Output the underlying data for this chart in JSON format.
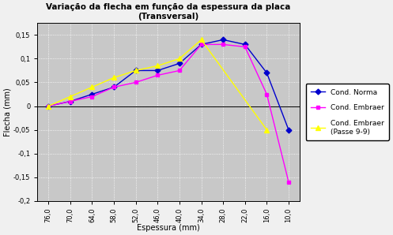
{
  "title_line1": "Variação da flecha em função da espessura da placa",
  "title_line2": "(Transversal)",
  "xlabel": "Espessura (mm)",
  "ylabel": "Flecha (mm)",
  "x_values": [
    76,
    70,
    64,
    58,
    52,
    46,
    40,
    34,
    28,
    22,
    16,
    10
  ],
  "cond_norma": [
    0.0,
    0.01,
    0.025,
    0.04,
    0.075,
    0.075,
    0.09,
    0.13,
    0.14,
    0.13,
    0.07,
    -0.05
  ],
  "cond_embraer": [
    0.0,
    0.01,
    0.02,
    0.04,
    0.05,
    0.065,
    0.075,
    0.13,
    0.13,
    0.125,
    0.025,
    -0.16
  ],
  "cond_embraer_99_x": [
    76,
    70,
    64,
    58,
    52,
    46,
    40,
    34,
    16
  ],
  "cond_embraer_99_y": [
    0.0,
    0.02,
    0.04,
    0.06,
    0.075,
    0.085,
    0.1,
    0.14,
    -0.05
  ],
  "norma_color": "#0000CD",
  "embraer_color": "#FF00FF",
  "embraer99_color": "#FFFF00",
  "ylim": [
    -0.2,
    0.175
  ],
  "yticks": [
    -0.2,
    -0.15,
    -0.1,
    -0.05,
    0,
    0.05,
    0.1,
    0.15
  ],
  "xlim_left": 79,
  "xlim_right": 7,
  "bg_color": "#C8C8C8",
  "fig_color": "#F0F0F0",
  "legend_labels": [
    "Cond. Norma",
    "Cond. Embraer",
    "Cond. Embraer\n(Passe 9-9)"
  ]
}
